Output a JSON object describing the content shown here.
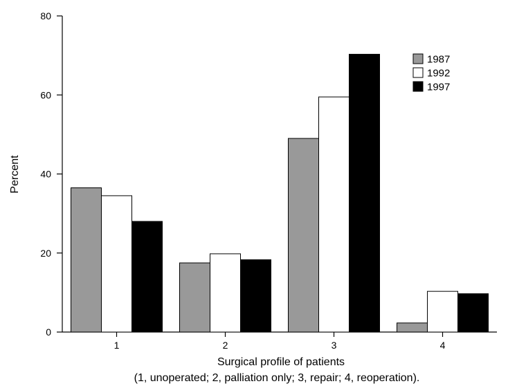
{
  "chart_data": {
    "type": "bar",
    "categories": [
      "1",
      "2",
      "3",
      "4"
    ],
    "series": [
      {
        "name": "1987",
        "values": [
          36.5,
          17.5,
          49,
          2.3
        ]
      },
      {
        "name": "1992",
        "values": [
          34.5,
          19.8,
          59.5,
          10.3
        ]
      },
      {
        "name": "1997",
        "values": [
          28,
          18.3,
          70.3,
          9.7
        ]
      }
    ],
    "series_colors": [
      "#999999",
      "#ffffff",
      "#000000"
    ],
    "xlabel": "Surgical profile of patients",
    "xlabel_note": "(1, unoperated; 2, palliation only; 3, repair; 4, reoperation).",
    "ylabel": "Percent",
    "ylim": [
      0,
      80
    ],
    "yticks": [
      0,
      20,
      40,
      60,
      80
    ],
    "legend_position": "top-right",
    "grid": false
  }
}
